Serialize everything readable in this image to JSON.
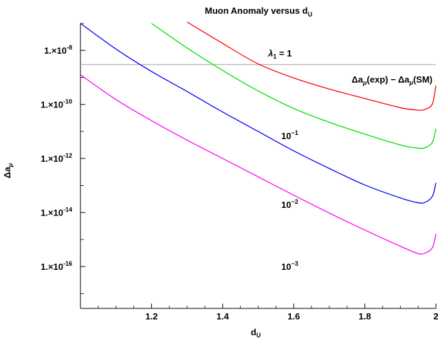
{
  "chart_data": {
    "type": "line",
    "title": "Muon Anomaly versus d",
    "title_sub": "U",
    "xlabel": "d",
    "xlabel_sub": "U",
    "ylabel": "Δa",
    "ylabel_sub": "μ",
    "xlim": [
      1.0,
      2.0
    ],
    "ylim_log10": [
      -17.55,
      -7.0
    ],
    "y_scale": "log",
    "grid": false,
    "x_ticks": [
      1.2,
      1.4,
      1.6,
      1.8,
      2.0
    ],
    "x_tick_labels": [
      "1.2",
      "1.4",
      "1.6",
      "1.8",
      "2"
    ],
    "y_ticks_log10": [
      -8,
      -10,
      -12,
      -14,
      -16
    ],
    "y_tick_labels": [
      {
        "mantissa": "1.×10",
        "exponent": "-8"
      },
      {
        "mantissa": "1.×10",
        "exponent": "-10"
      },
      {
        "mantissa": "1.×10",
        "exponent": "-12"
      },
      {
        "mantissa": "1.×10",
        "exponent": "-14"
      },
      {
        "mantissa": "1.×10",
        "exponent": "-16"
      }
    ],
    "reference_line": {
      "value": 3e-09,
      "label": "Δa(exp) − Δa(SM)",
      "color": "#a0a0a0"
    },
    "series": [
      {
        "color": "#ff0000",
        "label": {
          "base": "λ",
          "sub": "1",
          "rest": " = 1"
        },
        "x": [
          1.3,
          1.4,
          1.5,
          1.6,
          1.7,
          1.8,
          1.9,
          1.95,
          1.97,
          1.99,
          2.0
        ],
        "y_log10": [
          -6.95,
          -7.74,
          -8.5,
          -9.02,
          -9.43,
          -9.78,
          -10.12,
          -10.21,
          -10.18,
          -9.98,
          -9.3
        ]
      },
      {
        "color": "#00e000",
        "label": {
          "base": "10",
          "sup": "−1"
        },
        "x": [
          1.2,
          1.3,
          1.4,
          1.5,
          1.6,
          1.7,
          1.8,
          1.9,
          1.95,
          1.97,
          1.99,
          2.0
        ],
        "y_log10": [
          -7.0,
          -7.91,
          -8.74,
          -9.5,
          -10.15,
          -10.66,
          -11.1,
          -11.5,
          -11.62,
          -11.6,
          -11.4,
          -10.9
        ]
      },
      {
        "color": "#0000ff",
        "label": {
          "base": "10",
          "sup": "−2"
        },
        "x": [
          1.0,
          1.1,
          1.2,
          1.3,
          1.4,
          1.5,
          1.6,
          1.7,
          1.8,
          1.9,
          1.95,
          1.97,
          1.99,
          2.0
        ],
        "y_log10": [
          -7.0,
          -7.95,
          -8.78,
          -9.52,
          -10.28,
          -11.0,
          -11.72,
          -12.37,
          -12.98,
          -13.46,
          -13.64,
          -13.62,
          -13.4,
          -12.9
        ]
      },
      {
        "color": "#ff00ff",
        "label": {
          "base": "10",
          "sup": "−3"
        },
        "x": [
          1.0,
          1.1,
          1.2,
          1.3,
          1.4,
          1.5,
          1.6,
          1.7,
          1.8,
          1.9,
          1.95,
          1.97,
          1.99,
          2.0
        ],
        "y_log10": [
          -8.9,
          -9.82,
          -10.6,
          -11.32,
          -12.0,
          -12.68,
          -13.36,
          -14.02,
          -14.65,
          -15.25,
          -15.52,
          -15.5,
          -15.3,
          -14.8
        ]
      }
    ]
  }
}
